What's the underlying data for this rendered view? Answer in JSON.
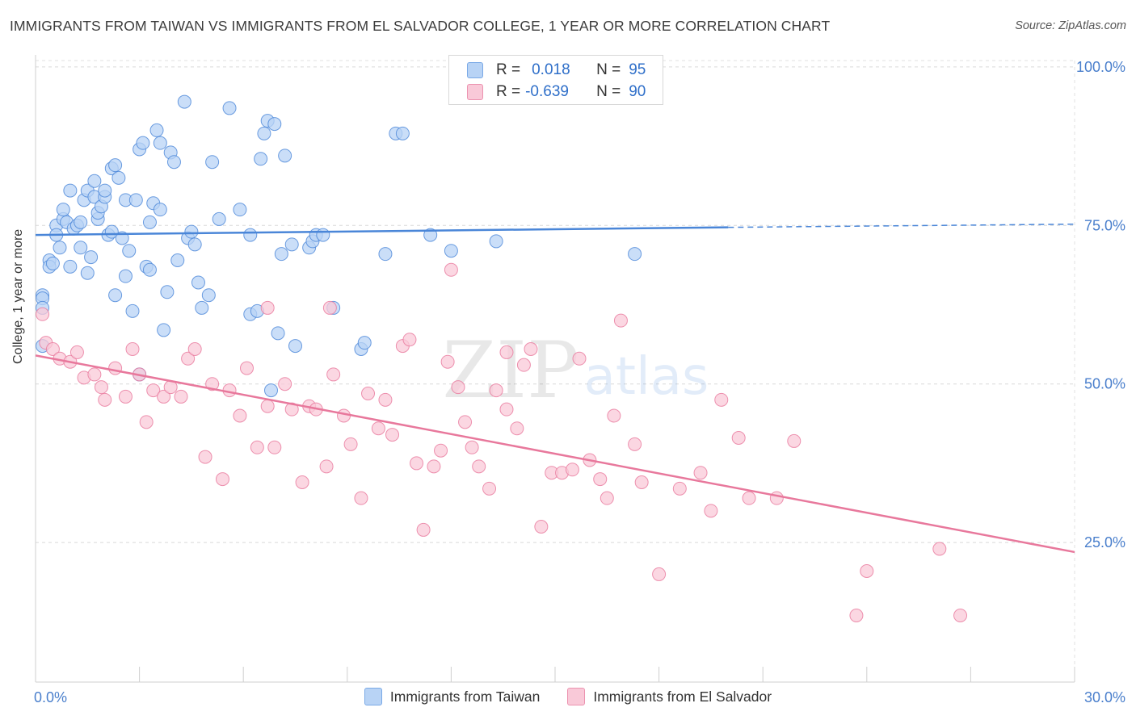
{
  "title": "IMMIGRANTS FROM TAIWAN VS IMMIGRANTS FROM EL SALVADOR COLLEGE, 1 YEAR OR MORE CORRELATION CHART",
  "source": "Source: ZipAtlas.com",
  "watermark": {
    "zip": "ZIP",
    "atlas": "atlas"
  },
  "legend_stats": [
    {
      "r_label": "R =",
      "r_value": "0.018",
      "n_label": "N =",
      "n_value": "95",
      "color": "#4a86d8"
    },
    {
      "r_label": "R =",
      "r_value": "-0.639",
      "n_label": "N =",
      "n_value": "90",
      "color": "#e8789c"
    }
  ],
  "chart_data": {
    "type": "scatter",
    "ylabel": "College, 1 year or more",
    "x_tick_labels": [
      "0.0%",
      "30.0%"
    ],
    "y_tick_labels": [
      "100.0%",
      "75.0%",
      "50.0%",
      "25.0%"
    ],
    "y_ticks": [
      100,
      75,
      50,
      25
    ],
    "xlim": [
      0,
      30
    ],
    "ylim": [
      3,
      101
    ],
    "grid": true,
    "legend_position": "bottom",
    "series": [
      {
        "name": "Immigrants from Taiwan",
        "color": "#4a86d8",
        "fill": "#b8d3f5",
        "trend": {
          "x": [
            0,
            20
          ],
          "y": [
            73.5,
            74.7
          ],
          "dashed_to": [
            30,
            75.2
          ]
        },
        "points": [
          [
            0.2,
            64.0
          ],
          [
            0.2,
            63.5
          ],
          [
            0.2,
            62.0
          ],
          [
            0.2,
            56.0
          ],
          [
            0.4,
            69.5
          ],
          [
            0.4,
            68.5
          ],
          [
            0.5,
            69.0
          ],
          [
            0.6,
            75.0
          ],
          [
            0.6,
            73.5
          ],
          [
            0.7,
            71.5
          ],
          [
            0.8,
            76.0
          ],
          [
            0.8,
            77.5
          ],
          [
            0.9,
            75.5
          ],
          [
            1.0,
            80.5
          ],
          [
            1.0,
            68.5
          ],
          [
            1.1,
            74.5
          ],
          [
            1.2,
            75.0
          ],
          [
            1.3,
            75.5
          ],
          [
            1.3,
            71.5
          ],
          [
            1.4,
            79.0
          ],
          [
            1.5,
            80.5
          ],
          [
            1.5,
            67.5
          ],
          [
            1.6,
            70.0
          ],
          [
            1.7,
            82.0
          ],
          [
            1.7,
            79.5
          ],
          [
            1.8,
            76.0
          ],
          [
            1.8,
            77.0
          ],
          [
            1.9,
            78.0
          ],
          [
            2.0,
            79.5
          ],
          [
            2.0,
            80.5
          ],
          [
            2.1,
            73.5
          ],
          [
            2.2,
            84.0
          ],
          [
            2.2,
            74.0
          ],
          [
            2.3,
            84.5
          ],
          [
            2.3,
            64.0
          ],
          [
            2.4,
            82.5
          ],
          [
            2.5,
            73.0
          ],
          [
            2.6,
            79.0
          ],
          [
            2.6,
            67.0
          ],
          [
            2.7,
            71.0
          ],
          [
            2.8,
            61.5
          ],
          [
            2.9,
            79.0
          ],
          [
            3.0,
            51.5
          ],
          [
            3.0,
            87.0
          ],
          [
            3.1,
            88.0
          ],
          [
            3.2,
            68.5
          ],
          [
            3.3,
            68.0
          ],
          [
            3.3,
            75.5
          ],
          [
            3.4,
            78.5
          ],
          [
            3.5,
            90.0
          ],
          [
            3.6,
            77.5
          ],
          [
            3.6,
            88.0
          ],
          [
            3.7,
            58.5
          ],
          [
            3.8,
            64.5
          ],
          [
            3.9,
            86.5
          ],
          [
            4.0,
            85.0
          ],
          [
            4.1,
            69.5
          ],
          [
            4.3,
            94.5
          ],
          [
            4.4,
            73.0
          ],
          [
            4.5,
            74.0
          ],
          [
            4.6,
            72.0
          ],
          [
            4.7,
            66.0
          ],
          [
            4.8,
            62.0
          ],
          [
            5.0,
            64.0
          ],
          [
            5.1,
            85.0
          ],
          [
            5.3,
            76.0
          ],
          [
            5.6,
            93.5
          ],
          [
            5.9,
            77.5
          ],
          [
            6.2,
            61.0
          ],
          [
            6.2,
            73.5
          ],
          [
            6.4,
            61.5
          ],
          [
            6.5,
            85.5
          ],
          [
            6.6,
            89.5
          ],
          [
            6.7,
            91.5
          ],
          [
            6.8,
            49.0
          ],
          [
            6.9,
            91.0
          ],
          [
            7.0,
            58.0
          ],
          [
            7.1,
            70.5
          ],
          [
            7.2,
            86.0
          ],
          [
            7.4,
            72.0
          ],
          [
            7.5,
            56.0
          ],
          [
            7.9,
            71.5
          ],
          [
            8.0,
            72.5
          ],
          [
            8.1,
            73.5
          ],
          [
            8.3,
            73.5
          ],
          [
            8.6,
            62.0
          ],
          [
            9.4,
            55.5
          ],
          [
            9.5,
            56.5
          ],
          [
            10.1,
            70.5
          ],
          [
            10.4,
            89.5
          ],
          [
            10.6,
            89.5
          ],
          [
            11.4,
            73.5
          ],
          [
            12.0,
            71.0
          ],
          [
            13.3,
            72.5
          ],
          [
            17.3,
            70.5
          ]
        ]
      },
      {
        "name": "Immigrants from El Salvador",
        "color": "#e8789c",
        "fill": "#f9c9d8",
        "trend": {
          "x": [
            0,
            30
          ],
          "y": [
            54.5,
            23.5
          ]
        },
        "points": [
          [
            0.2,
            61.0
          ],
          [
            0.3,
            56.5
          ],
          [
            0.5,
            55.5
          ],
          [
            0.7,
            54.0
          ],
          [
            1.0,
            53.5
          ],
          [
            1.2,
            55.0
          ],
          [
            1.4,
            51.0
          ],
          [
            1.7,
            51.5
          ],
          [
            1.9,
            49.5
          ],
          [
            2.0,
            47.5
          ],
          [
            2.3,
            52.5
          ],
          [
            2.6,
            48.0
          ],
          [
            2.8,
            55.5
          ],
          [
            3.0,
            51.5
          ],
          [
            3.2,
            44.0
          ],
          [
            3.4,
            49.0
          ],
          [
            3.7,
            48.0
          ],
          [
            3.9,
            49.5
          ],
          [
            4.2,
            48.0
          ],
          [
            4.4,
            54.0
          ],
          [
            4.6,
            55.5
          ],
          [
            4.9,
            38.5
          ],
          [
            5.1,
            50.0
          ],
          [
            5.4,
            35.0
          ],
          [
            5.6,
            49.0
          ],
          [
            5.9,
            45.0
          ],
          [
            6.1,
            52.5
          ],
          [
            6.4,
            40.0
          ],
          [
            6.7,
            46.5
          ],
          [
            6.9,
            40.0
          ],
          [
            7.2,
            50.0
          ],
          [
            7.4,
            46.0
          ],
          [
            7.7,
            34.5
          ],
          [
            7.9,
            46.5
          ],
          [
            8.1,
            46.0
          ],
          [
            8.4,
            37.0
          ],
          [
            8.6,
            51.5
          ],
          [
            8.9,
            45.0
          ],
          [
            9.1,
            40.5
          ],
          [
            9.4,
            32.0
          ],
          [
            9.6,
            48.5
          ],
          [
            9.9,
            43.0
          ],
          [
            10.1,
            47.5
          ],
          [
            10.3,
            42.0
          ],
          [
            10.6,
            56.0
          ],
          [
            10.8,
            57.0
          ],
          [
            11.0,
            37.5
          ],
          [
            11.2,
            27.0
          ],
          [
            11.5,
            37.0
          ],
          [
            11.7,
            39.5
          ],
          [
            11.9,
            53.5
          ],
          [
            12.2,
            49.5
          ],
          [
            12.4,
            44.0
          ],
          [
            12.6,
            40.0
          ],
          [
            12.8,
            37.0
          ],
          [
            13.1,
            33.5
          ],
          [
            13.3,
            49.0
          ],
          [
            13.6,
            46.0
          ],
          [
            13.9,
            43.0
          ],
          [
            14.1,
            53.0
          ],
          [
            14.3,
            55.5
          ],
          [
            14.6,
            27.5
          ],
          [
            14.9,
            36.0
          ],
          [
            15.2,
            36.0
          ],
          [
            15.5,
            36.5
          ],
          [
            15.7,
            54.0
          ],
          [
            16.0,
            38.0
          ],
          [
            16.3,
            35.0
          ],
          [
            16.5,
            32.0
          ],
          [
            16.7,
            45.0
          ],
          [
            16.9,
            60.0
          ],
          [
            17.3,
            40.5
          ],
          [
            17.5,
            34.5
          ],
          [
            18.0,
            20.0
          ],
          [
            18.6,
            33.5
          ],
          [
            19.2,
            36.0
          ],
          [
            19.5,
            30.0
          ],
          [
            19.8,
            47.5
          ],
          [
            20.3,
            41.5
          ],
          [
            20.6,
            32.0
          ],
          [
            21.4,
            32.0
          ],
          [
            21.9,
            41.0
          ],
          [
            23.7,
            13.5
          ],
          [
            24.0,
            20.5
          ],
          [
            26.1,
            24.0
          ],
          [
            26.7,
            13.5
          ],
          [
            12.0,
            68.0
          ],
          [
            8.5,
            62.0
          ],
          [
            6.7,
            62.0
          ],
          [
            13.6,
            55.0
          ]
        ]
      }
    ]
  }
}
